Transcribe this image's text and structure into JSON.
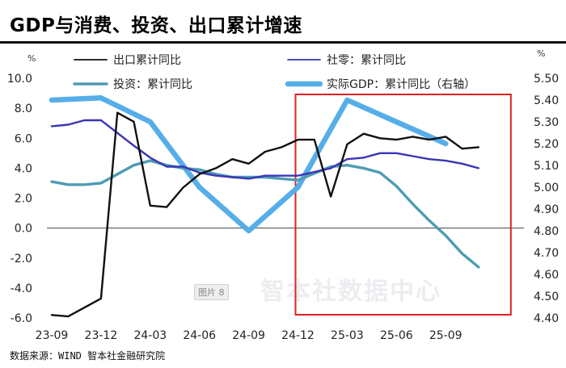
{
  "title": "GDP与消费、投资、出口累计增速",
  "source": "数据来源：WIND 智本社金融研究院",
  "watermark": "智本社数据中心",
  "figure_tag": "图片 8",
  "chart_data": {
    "type": "line",
    "left_unit": "%",
    "right_unit": "%",
    "x_labels": [
      "23-09",
      "23-12",
      "24-03",
      "24-06",
      "24-09",
      "24-12",
      "25-03",
      "25-06",
      "25-09"
    ],
    "y_left_ticks": [
      "10.0",
      "8.0",
      "6.0",
      "4.0",
      "2.0",
      "0.0",
      "-2.0",
      "-4.0",
      "-6.0"
    ],
    "y_right_ticks": [
      "5.50",
      "5.40",
      "5.30",
      "5.20",
      "5.10",
      "5.00",
      "4.90",
      "4.80",
      "4.70",
      "4.60",
      "4.50",
      "4.40"
    ],
    "ylim_left": [
      -6,
      10
    ],
    "ylim_right": [
      4.4,
      5.5
    ],
    "series": [
      {
        "name": "出口累计同比",
        "axis": "left",
        "color": "#111111",
        "months": [
          "2023-09",
          "2023-10",
          "2023-11",
          "2023-12",
          "2024-01",
          "2024-02",
          "2024-03",
          "2024-04",
          "2024-05",
          "2024-06",
          "2024-07",
          "2024-08",
          "2024-09",
          "2024-10",
          "2024-11",
          "2024-12",
          "2025-01",
          "2025-02",
          "2025-03",
          "2025-04",
          "2025-05",
          "2025-06",
          "2025-07",
          "2025-08",
          "2025-09",
          "2025-10",
          "2025-11"
        ],
        "values": [
          -5.8,
          -5.9,
          null,
          -4.7,
          7.7,
          7.1,
          1.5,
          1.4,
          2.7,
          3.6,
          4.0,
          4.6,
          4.3,
          5.1,
          5.4,
          5.9,
          5.9,
          2.1,
          5.6,
          6.3,
          6.0,
          5.9,
          6.1,
          5.9,
          6.1,
          5.3,
          5.4
        ]
      },
      {
        "name": "社零：累计同比",
        "axis": "left",
        "color": "#3b35b5",
        "months": [
          "2023-09",
          "2023-10",
          "2023-11",
          "2023-12",
          "2024-01",
          "2024-02",
          "2024-03",
          "2024-04",
          "2024-05",
          "2024-06",
          "2024-07",
          "2024-08",
          "2024-09",
          "2024-10",
          "2024-11",
          "2024-12",
          "2025-01",
          "2025-02",
          "2025-03",
          "2025-04",
          "2025-05",
          "2025-06",
          "2025-07",
          "2025-08",
          "2025-09",
          "2025-10",
          "2025-11"
        ],
        "values": [
          6.8,
          6.9,
          7.2,
          7.2,
          null,
          5.5,
          4.7,
          4.1,
          4.1,
          3.7,
          3.5,
          3.4,
          3.3,
          3.5,
          3.5,
          3.5,
          null,
          4.0,
          4.6,
          4.7,
          5.0,
          5.0,
          4.8,
          4.6,
          4.5,
          4.3,
          4.0
        ]
      },
      {
        "name": "投资：累计同比",
        "axis": "left",
        "color": "#4e9cb4",
        "months": [
          "2023-09",
          "2023-10",
          "2023-11",
          "2023-12",
          "2024-01",
          "2024-02",
          "2024-03",
          "2024-04",
          "2024-05",
          "2024-06",
          "2024-07",
          "2024-08",
          "2024-09",
          "2024-10",
          "2024-11",
          "2024-12",
          "2025-01",
          "2025-02",
          "2025-03",
          "2025-04",
          "2025-05",
          "2025-06",
          "2025-07",
          "2025-08",
          "2025-09",
          "2025-10",
          "2025-11"
        ],
        "values": [
          3.1,
          2.9,
          2.9,
          3.0,
          null,
          4.2,
          4.5,
          4.2,
          4.0,
          3.9,
          3.6,
          3.4,
          3.4,
          3.4,
          3.3,
          3.2,
          null,
          4.1,
          4.2,
          4.0,
          3.7,
          2.8,
          1.6,
          0.5,
          -0.5,
          -1.7,
          -2.6
        ]
      },
      {
        "name": "实际GDP：累计同比（右轴）",
        "axis": "right",
        "color": "#56aee8",
        "months": [
          "2023-09",
          "2023-12",
          "2024-03",
          "2024-06",
          "2024-09",
          "2024-12",
          "2025-03",
          "2025-06",
          "2025-09"
        ],
        "values": [
          5.4,
          5.41,
          5.3,
          5.0,
          4.8,
          5.0,
          5.4,
          5.3,
          5.2
        ]
      }
    ],
    "highlight_range": [
      "2024-12",
      "2025-11"
    ],
    "highlight_color": "#e02020",
    "grid": false,
    "legend_position": "top"
  }
}
